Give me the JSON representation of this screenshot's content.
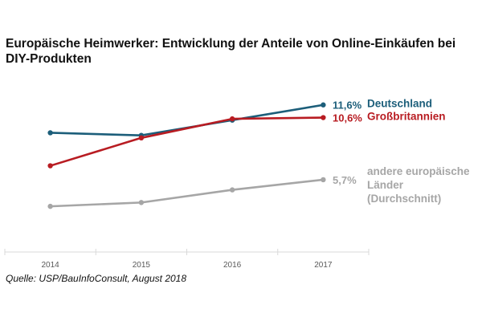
{
  "chart_data": {
    "type": "line",
    "title": "Europäische Heimwerker: Entwicklung der Anteile von Online-Einkäufen bei DIY-Produkten",
    "xlabel": "",
    "ylabel": "",
    "x": [
      "2014",
      "2015",
      "2016",
      "2017"
    ],
    "ylim": [
      0,
      12.5
    ],
    "grid": false,
    "legend": "direct-labels-right",
    "series": [
      {
        "name": "Deutschland",
        "color": "#1c5e7a",
        "values": [
          9.4,
          9.2,
          10.4,
          11.6
        ],
        "end_label": "11,6%",
        "label_lines": [
          "Deutschland"
        ]
      },
      {
        "name": "Großbritannien",
        "color": "#b81c22",
        "values": [
          6.8,
          9.0,
          10.5,
          10.6
        ],
        "end_label": "10,6%",
        "label_lines": [
          "Großbritannien"
        ]
      },
      {
        "name": "andere europäische Länder (Durchschnitt)",
        "color": "#a6a6a6",
        "values": [
          3.6,
          3.9,
          4.9,
          5.7
        ],
        "end_label": "5,7%",
        "label_lines": [
          "andere europäische",
          "Länder",
          "(Durchschnitt)"
        ]
      }
    ],
    "source": "Quelle: USP/BauInfoConsult, August 2018"
  }
}
